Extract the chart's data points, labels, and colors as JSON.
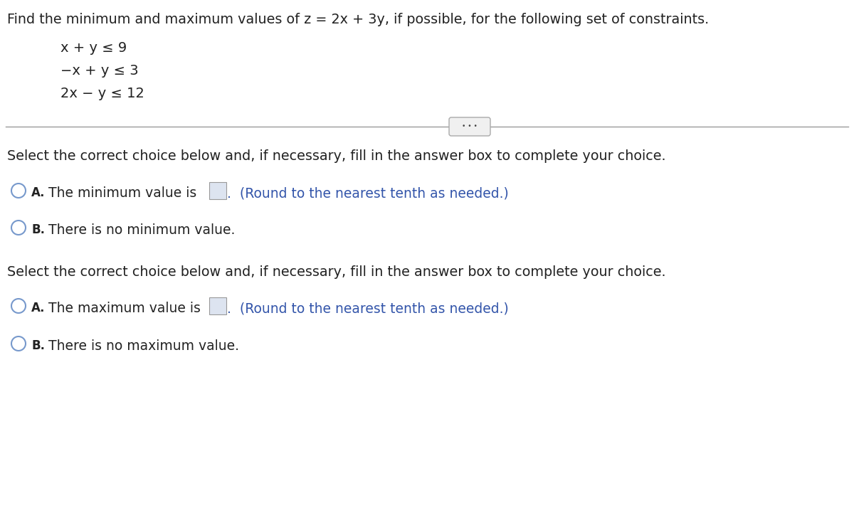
{
  "title": "Find the minimum and maximum values of z = 2x + 3y, if possible, for the following set of constraints.",
  "constraints": [
    "x + y ≤ 9",
    "−x + y ≤ 3",
    "2x − y ≤ 12"
  ],
  "select_text": "Select the correct choice below and, if necessary, fill in the answer box to complete your choice.",
  "bg_color": "#ffffff",
  "text_color": "#1a1a1a",
  "dark_text": "#222222",
  "blue_color": "#3355aa",
  "circle_edge_color": "#7799cc",
  "box_fill_color": "#dde4f0",
  "box_edge_color": "#999999",
  "divider_color": "#999999",
  "btn_face_color": "#f0f0f0",
  "btn_edge_color": "#aaaaaa",
  "btn_text_color": "#444444"
}
